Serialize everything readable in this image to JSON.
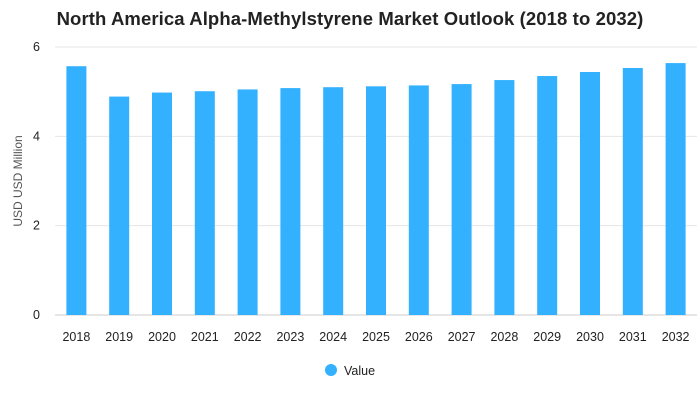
{
  "chart_data": {
    "type": "bar",
    "title": "North America Alpha-Methylstyrene Market Outlook (2018 to 2032)",
    "xlabel": "",
    "ylabel": "USD USD Million",
    "ylim": [
      0,
      6
    ],
    "yticks": [
      0,
      2,
      4,
      6
    ],
    "grid": true,
    "legend_position": "bottom",
    "categories": [
      "2018",
      "2019",
      "2020",
      "2021",
      "2022",
      "2023",
      "2024",
      "2025",
      "2026",
      "2027",
      "2028",
      "2029",
      "2030",
      "2031",
      "2032"
    ],
    "series": [
      {
        "name": "Value",
        "color": "#33b1ff",
        "values": [
          5.57,
          4.89,
          4.98,
          5.01,
          5.05,
          5.08,
          5.1,
          5.12,
          5.14,
          5.17,
          5.26,
          5.35,
          5.44,
          5.53,
          5.64
        ]
      }
    ]
  }
}
